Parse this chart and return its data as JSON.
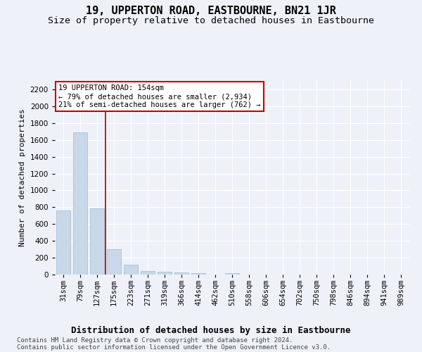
{
  "title": "19, UPPERTON ROAD, EASTBOURNE, BN21 1JR",
  "subtitle": "Size of property relative to detached houses in Eastbourne",
  "xlabel": "Distribution of detached houses by size in Eastbourne",
  "ylabel": "Number of detached properties",
  "categories": [
    "31sqm",
    "79sqm",
    "127sqm",
    "175sqm",
    "223sqm",
    "271sqm",
    "319sqm",
    "366sqm",
    "414sqm",
    "462sqm",
    "510sqm",
    "558sqm",
    "606sqm",
    "654sqm",
    "702sqm",
    "750sqm",
    "798sqm",
    "846sqm",
    "894sqm",
    "941sqm",
    "989sqm"
  ],
  "values": [
    760,
    1690,
    790,
    300,
    115,
    45,
    32,
    28,
    18,
    0,
    20,
    0,
    0,
    0,
    0,
    0,
    0,
    0,
    0,
    0,
    0
  ],
  "bar_color": "#c8d8e8",
  "bar_edge_color": "#a0b8d0",
  "vline_color": "#aa0000",
  "annotation_text": "19 UPPERTON ROAD: 154sqm\n← 79% of detached houses are smaller (2,934)\n21% of semi-detached houses are larger (762) →",
  "annotation_box_color": "#ffffff",
  "annotation_box_edge": "#cc0000",
  "ylim": [
    0,
    2300
  ],
  "yticks": [
    0,
    200,
    400,
    600,
    800,
    1000,
    1200,
    1400,
    1600,
    1800,
    2000,
    2200
  ],
  "bg_color": "#eef2f8",
  "plot_bg_color": "#eef2f8",
  "footer": "Contains HM Land Registry data © Crown copyright and database right 2024.\nContains public sector information licensed under the Open Government Licence v3.0.",
  "title_fontsize": 11,
  "subtitle_fontsize": 9.5,
  "xlabel_fontsize": 9,
  "ylabel_fontsize": 8,
  "tick_fontsize": 7.5,
  "annotation_fontsize": 7.5,
  "footer_fontsize": 6.5
}
